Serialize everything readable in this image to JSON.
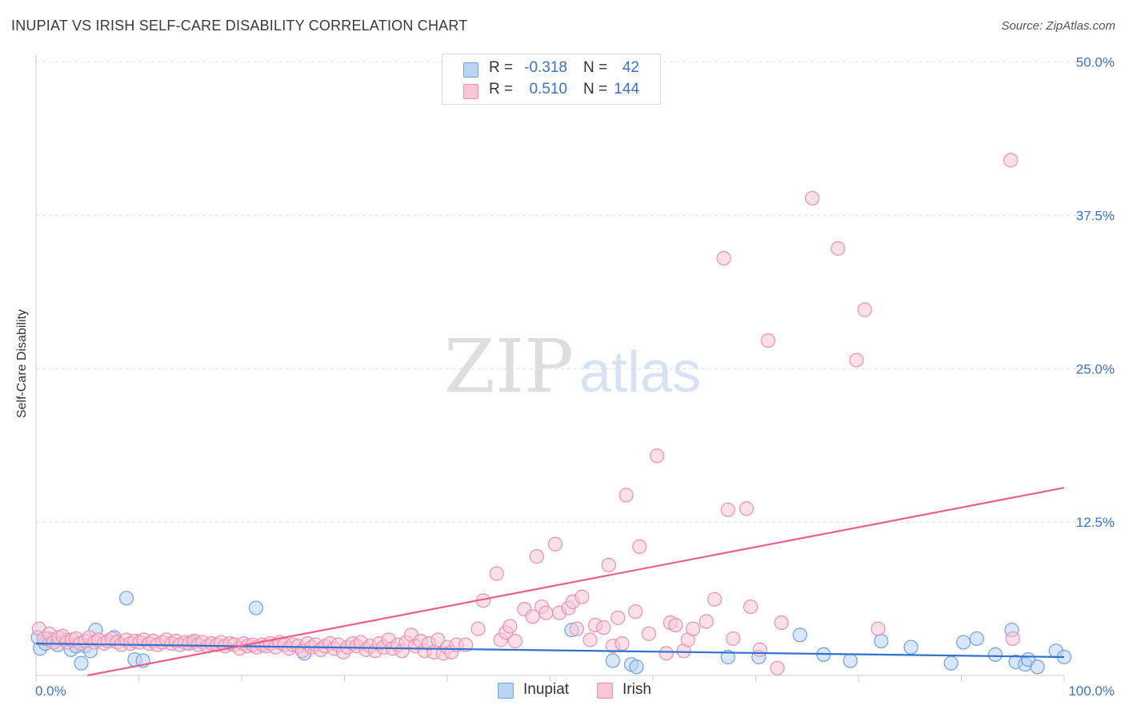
{
  "title": "INUPIAT VS IRISH SELF-CARE DISABILITY CORRELATION CHART",
  "source": "Source: ZipAtlas.com",
  "watermark": {
    "zip": "ZIP",
    "atlas": "atlas"
  },
  "legend_top": [
    {
      "r_label": "R =",
      "r_value": "-0.318",
      "n_label": "N =",
      "n_value": "42"
    },
    {
      "r_label": "R =",
      "r_value": "0.510",
      "n_label": "N =",
      "n_value": "144"
    }
  ],
  "legend_bottom": {
    "inupiat": "Inupiat",
    "irish": "Irish"
  },
  "colors": {
    "inupiat_fill": "#b9d4f5",
    "inupiat_stroke": "#6fa0e3",
    "inupiat_line": "#2e72d2",
    "irish_fill": "#f9c6d5",
    "irish_stroke": "#ee8fae",
    "irish_line": "#e8608a",
    "grid": "#dddddd",
    "tick_text": "#3b73c8"
  },
  "chart_data": {
    "type": "scatter",
    "title": "INUPIAT VS IRISH SELF-CARE DISABILITY CORRELATION CHART",
    "xlabel": "",
    "ylabel": "Self-Care Disability",
    "xlim": [
      0,
      100
    ],
    "ylim": [
      0,
      52
    ],
    "x_tick_labels": [
      "0.0%",
      "100.0%"
    ],
    "y_ticks": [
      12.5,
      25.0,
      37.5,
      50.0
    ],
    "y_tick_labels": [
      "12.5%",
      "25.0%",
      "37.5%",
      "50.0%"
    ],
    "series": [
      {
        "name": "Inupiat",
        "r": -0.318,
        "n": 42,
        "trend": {
          "x": [
            0,
            100
          ],
          "y": [
            2.6,
            1.5
          ]
        },
        "points": [
          [
            0.4,
            2.2
          ],
          [
            0.9,
            2.6
          ],
          [
            1.2,
            3.0
          ],
          [
            1.6,
            2.9
          ],
          [
            2.1,
            2.5
          ],
          [
            2.9,
            2.9
          ],
          [
            3.4,
            2.1
          ],
          [
            3.9,
            2.4
          ],
          [
            4.4,
            1.0
          ],
          [
            4.8,
            2.4
          ],
          [
            5.3,
            2.0
          ],
          [
            5.8,
            3.7
          ],
          [
            7.6,
            3.1
          ],
          [
            8.8,
            6.3
          ],
          [
            9.6,
            1.3
          ],
          [
            10.4,
            1.2
          ],
          [
            15.2,
            2.7
          ],
          [
            21.4,
            5.5
          ],
          [
            26.1,
            1.8
          ],
          [
            52.1,
            3.7
          ],
          [
            56.1,
            1.2
          ],
          [
            57.9,
            0.9
          ],
          [
            58.4,
            0.7
          ],
          [
            67.3,
            1.5
          ],
          [
            70.3,
            1.5
          ],
          [
            74.3,
            3.3
          ],
          [
            76.6,
            1.7
          ],
          [
            79.2,
            1.2
          ],
          [
            82.2,
            2.8
          ],
          [
            85.1,
            2.3
          ],
          [
            89.0,
            1.0
          ],
          [
            90.2,
            2.7
          ],
          [
            91.5,
            3.0
          ],
          [
            93.3,
            1.7
          ],
          [
            94.9,
            3.7
          ],
          [
            95.3,
            1.1
          ],
          [
            96.2,
            0.9
          ],
          [
            96.5,
            1.3
          ],
          [
            97.4,
            0.7
          ],
          [
            99.2,
            2.0
          ],
          [
            100.0,
            1.5
          ],
          [
            0.2,
            3.1
          ]
        ]
      },
      {
        "name": "Irish",
        "r": 0.51,
        "n": 144,
        "trend": {
          "x": [
            5,
            100
          ],
          "y": [
            0,
            15.3
          ]
        },
        "points": [
          [
            0.3,
            3.8
          ],
          [
            0.8,
            3.0
          ],
          [
            1.3,
            3.4
          ],
          [
            1.7,
            2.7
          ],
          [
            2.2,
            3.1
          ],
          [
            2.6,
            3.2
          ],
          [
            3.0,
            2.7
          ],
          [
            3.5,
            2.9
          ],
          [
            3.9,
            3.0
          ],
          [
            4.3,
            2.6
          ],
          [
            4.8,
            2.8
          ],
          [
            5.2,
            3.1
          ],
          [
            5.7,
            2.7
          ],
          [
            6.1,
            2.9
          ],
          [
            6.6,
            2.6
          ],
          [
            7.0,
            2.8
          ],
          [
            7.4,
            3.0
          ],
          [
            7.9,
            2.7
          ],
          [
            8.3,
            2.5
          ],
          [
            8.8,
            2.9
          ],
          [
            9.2,
            2.6
          ],
          [
            9.6,
            2.8
          ],
          [
            10.1,
            2.7
          ],
          [
            10.5,
            2.9
          ],
          [
            11.0,
            2.6
          ],
          [
            11.4,
            2.8
          ],
          [
            11.8,
            2.5
          ],
          [
            12.3,
            2.7
          ],
          [
            12.7,
            2.9
          ],
          [
            13.2,
            2.6
          ],
          [
            13.6,
            2.8
          ],
          [
            14.0,
            2.5
          ],
          [
            14.5,
            2.7
          ],
          [
            14.9,
            2.6
          ],
          [
            15.4,
            2.8
          ],
          [
            15.8,
            2.5
          ],
          [
            16.2,
            2.7
          ],
          [
            16.7,
            2.4
          ],
          [
            17.1,
            2.6
          ],
          [
            17.6,
            2.5
          ],
          [
            18.0,
            2.7
          ],
          [
            18.4,
            2.4
          ],
          [
            18.9,
            2.6
          ],
          [
            19.3,
            2.5
          ],
          [
            19.8,
            2.2
          ],
          [
            20.2,
            2.6
          ],
          [
            20.6,
            2.4
          ],
          [
            21.1,
            2.5
          ],
          [
            21.5,
            2.3
          ],
          [
            22.0,
            2.5
          ],
          [
            22.4,
            2.4
          ],
          [
            22.8,
            2.6
          ],
          [
            23.3,
            2.3
          ],
          [
            23.7,
            2.7
          ],
          [
            24.2,
            2.5
          ],
          [
            24.6,
            2.2
          ],
          [
            25.0,
            2.5
          ],
          [
            25.5,
            2.4
          ],
          [
            25.9,
            2.0
          ],
          [
            26.4,
            2.6
          ],
          [
            26.8,
            2.3
          ],
          [
            27.2,
            2.5
          ],
          [
            27.7,
            2.1
          ],
          [
            28.1,
            2.4
          ],
          [
            28.6,
            2.6
          ],
          [
            29.0,
            2.2
          ],
          [
            29.4,
            2.5
          ],
          [
            29.9,
            1.9
          ],
          [
            30.3,
            2.3
          ],
          [
            30.8,
            2.6
          ],
          [
            31.2,
            2.4
          ],
          [
            31.6,
            2.7
          ],
          [
            32.1,
            2.1
          ],
          [
            32.5,
            2.4
          ],
          [
            33.0,
            2.0
          ],
          [
            33.4,
            2.6
          ],
          [
            33.8,
            2.3
          ],
          [
            34.3,
            2.9
          ],
          [
            34.7,
            2.2
          ],
          [
            35.2,
            2.5
          ],
          [
            35.6,
            2.0
          ],
          [
            36.0,
            2.7
          ],
          [
            36.5,
            3.3
          ],
          [
            36.9,
            2.4
          ],
          [
            37.4,
            2.8
          ],
          [
            37.8,
            2.0
          ],
          [
            38.2,
            2.6
          ],
          [
            38.7,
            1.9
          ],
          [
            39.1,
            2.9
          ],
          [
            39.6,
            1.8
          ],
          [
            40.0,
            2.3
          ],
          [
            40.4,
            1.9
          ],
          [
            40.9,
            2.5
          ],
          [
            41.8,
            2.5
          ],
          [
            43.0,
            3.8
          ],
          [
            43.5,
            6.1
          ],
          [
            44.8,
            8.3
          ],
          [
            45.2,
            2.9
          ],
          [
            45.7,
            3.5
          ],
          [
            46.1,
            4.0
          ],
          [
            46.6,
            2.8
          ],
          [
            47.5,
            5.4
          ],
          [
            48.3,
            4.8
          ],
          [
            48.7,
            9.7
          ],
          [
            49.2,
            5.6
          ],
          [
            49.6,
            5.1
          ],
          [
            50.5,
            10.7
          ],
          [
            50.9,
            5.1
          ],
          [
            51.8,
            5.5
          ],
          [
            52.2,
            6.0
          ],
          [
            52.6,
            3.8
          ],
          [
            53.1,
            6.4
          ],
          [
            53.9,
            2.9
          ],
          [
            54.4,
            4.1
          ],
          [
            55.2,
            3.9
          ],
          [
            55.7,
            9.0
          ],
          [
            56.1,
            2.4
          ],
          [
            56.6,
            4.7
          ],
          [
            57.0,
            2.6
          ],
          [
            57.4,
            14.7
          ],
          [
            58.3,
            5.2
          ],
          [
            58.7,
            10.5
          ],
          [
            59.6,
            3.4
          ],
          [
            60.4,
            17.9
          ],
          [
            61.3,
            1.8
          ],
          [
            61.7,
            4.3
          ],
          [
            62.2,
            4.1
          ],
          [
            63.0,
            2.0
          ],
          [
            63.4,
            2.9
          ],
          [
            63.9,
            3.8
          ],
          [
            65.2,
            4.4
          ],
          [
            66.0,
            6.2
          ],
          [
            66.9,
            34.0
          ],
          [
            67.3,
            13.5
          ],
          [
            67.8,
            3.0
          ],
          [
            69.1,
            13.6
          ],
          [
            69.5,
            5.6
          ],
          [
            70.4,
            2.1
          ],
          [
            71.2,
            27.3
          ],
          [
            72.1,
            0.6
          ],
          [
            72.5,
            4.3
          ],
          [
            75.5,
            38.9
          ],
          [
            78.0,
            34.8
          ],
          [
            79.8,
            25.7
          ],
          [
            80.6,
            29.8
          ],
          [
            81.9,
            3.8
          ],
          [
            94.8,
            42.0
          ],
          [
            95.0,
            3.0
          ]
        ]
      }
    ]
  }
}
